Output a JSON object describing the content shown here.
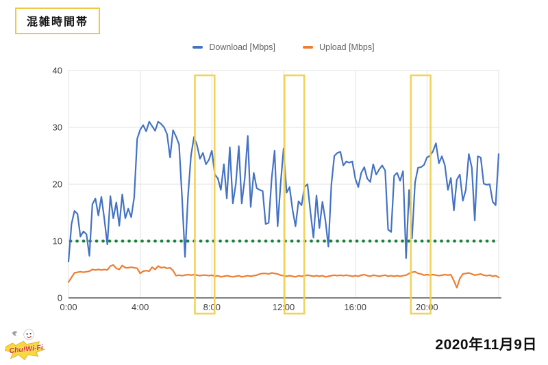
{
  "page": {
    "title_box": "混雑時間帯",
    "date_label": "2020年11月9日",
    "logo_text": "Chu!Wi-Fi"
  },
  "chart_data": {
    "type": "line",
    "title": "",
    "xlabel": "",
    "ylabel": "",
    "x_unit": "time of day (hours)",
    "x_range_hours": [
      0,
      24
    ],
    "x_tick_hours": [
      0,
      4,
      8,
      12,
      16,
      20
    ],
    "x_tick_labels": [
      "0:00",
      "4:00",
      "8:00",
      "12:00",
      "16:00",
      "20:00"
    ],
    "ylim": [
      0,
      40
    ],
    "y_ticks": [
      0,
      10,
      20,
      30,
      40
    ],
    "grid": true,
    "legend_position": "top",
    "sample_interval_minutes": 10,
    "colors": {
      "download": "#4472C4",
      "upload": "#ED7D31",
      "gridline": "#E2E2E2",
      "axis_line": "#545454",
      "tick_text": "#3d3d3d",
      "threshold_green": "#168039",
      "highlight_yellow": "#F0D152"
    },
    "threshold_line": {
      "value": 10,
      "style": "dotted",
      "color": "#168039"
    },
    "highlight_boxes": {
      "color": "#F0D152",
      "ranges_hours": [
        [
          7.05,
          8.15
        ],
        [
          12.05,
          13.15
        ],
        [
          19.1,
          20.2
        ]
      ]
    },
    "series": [
      {
        "name": "Download [Mbps]",
        "color": "#4472C4",
        "values": [
          6.4,
          13,
          15.3,
          14.8,
          10.8,
          11.7,
          11.2,
          7.4,
          16.5,
          17.5,
          14.5,
          17.8,
          13.9,
          9.4,
          17.9,
          14,
          16.8,
          12.7,
          18.2,
          14,
          15.7,
          14.2,
          17.7,
          28,
          29.6,
          30.4,
          29.3,
          31,
          30.2,
          29.4,
          31,
          30.6,
          30,
          28.8,
          24.7,
          29.5,
          28.4,
          27,
          17.8,
          7.2,
          17.8,
          25,
          28.3,
          26.9,
          24.5,
          25.5,
          23.5,
          24.3,
          25.9,
          21.7,
          21,
          19,
          23.5,
          17.5,
          26.5,
          16.6,
          20,
          26.7,
          16.6,
          21,
          28.5,
          16,
          22,
          19.3,
          19,
          18.8,
          13,
          13.2,
          21,
          25.9,
          12.6,
          20,
          26.3,
          18.5,
          19.5,
          15.5,
          12.6,
          17,
          16.3,
          19.5,
          20,
          15,
          10.6,
          18,
          12.3,
          16.9,
          13.6,
          9,
          20,
          25,
          25.5,
          25.7,
          23.3,
          24,
          23.8,
          24,
          21,
          19.5,
          22,
          23,
          21,
          20.4,
          23.5,
          21.7,
          22.6,
          23.3,
          22.4,
          12,
          11.6,
          21.5,
          22,
          20.6,
          22.3,
          7,
          19,
          10.5,
          20.3,
          22.9,
          23,
          23.4,
          24.7,
          25,
          25.8,
          27.2,
          23.7,
          24.9,
          23.3,
          19,
          21.1,
          15.4,
          20.8,
          21.7,
          17.1,
          19,
          25.3,
          22.9,
          13.6,
          24.9,
          24.7,
          20.1,
          19.9,
          20,
          16.9,
          16.3,
          25.3
        ]
      },
      {
        "name": "Upload [Mbps]",
        "color": "#ED7D31",
        "values": [
          2.8,
          3.6,
          4.4,
          4.5,
          4.6,
          4.5,
          4.6,
          4.7,
          5,
          4.9,
          5,
          4.9,
          5,
          4.9,
          5.6,
          5.8,
          5.2,
          5,
          5.7,
          5.3,
          5.3,
          5.4,
          5.3,
          5.2,
          4.3,
          4.7,
          4.8,
          4.7,
          5.4,
          5,
          5.6,
          5.3,
          5.4,
          5.2,
          5.3,
          4.8,
          3.9,
          4,
          3.9,
          4,
          4.1,
          4,
          4.1,
          4,
          3.9,
          4,
          4,
          3.9,
          4,
          3.8,
          3.9,
          3.7,
          3.8,
          3.9,
          3.8,
          3.7,
          3.8,
          3.9,
          3.7,
          3.8,
          3.9,
          3.8,
          3.9,
          4,
          4.2,
          4.3,
          4.3,
          4.2,
          4.4,
          4.3,
          4.2,
          4,
          3.9,
          3.8,
          3.9,
          3.8,
          3.7,
          3.9,
          3.8,
          3.9,
          4,
          3.9,
          3.8,
          3.9,
          3.8,
          3.9,
          3.7,
          3.8,
          3.9,
          4,
          3.9,
          4,
          3.9,
          4,
          3.9,
          3.8,
          3.9,
          3.8,
          4,
          4.1,
          3.9,
          3.8,
          4,
          3.9,
          3.8,
          3.9,
          4,
          3.8,
          3.9,
          3.8,
          3.9,
          3.8,
          3.9,
          4,
          4.3,
          4.5,
          4.6,
          4.3,
          4.2,
          4,
          4.1,
          4,
          4.1,
          4,
          3.9,
          4,
          4.1,
          4,
          4.1,
          3,
          1.8,
          3.4,
          4.2,
          4.3,
          4.4,
          4.2,
          4,
          4.1,
          4.2,
          4,
          3.9,
          4,
          3.8,
          3.9,
          3.6
        ]
      }
    ]
  }
}
